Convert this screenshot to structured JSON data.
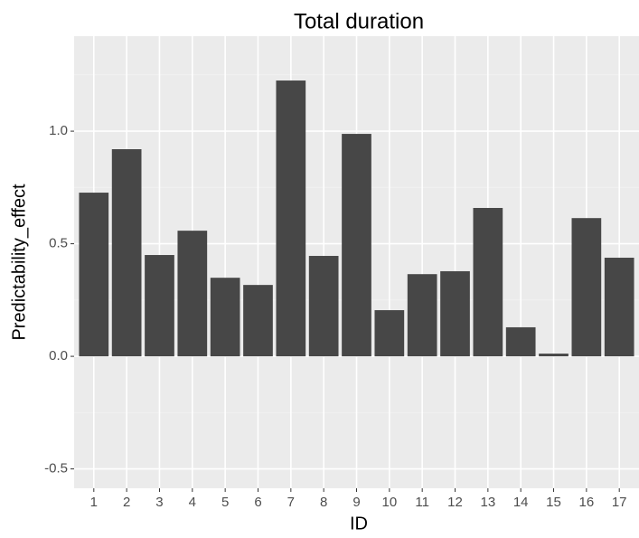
{
  "chart_data": {
    "type": "bar",
    "title": "Total duration",
    "x_label": "ID",
    "y_label": "Predictability_effect",
    "categories": [
      "1",
      "2",
      "3",
      "4",
      "5",
      "6",
      "7",
      "8",
      "9",
      "10",
      "11",
      "12",
      "13",
      "14",
      "15",
      "16",
      "17"
    ],
    "values": [
      0.727,
      0.92,
      0.45,
      0.558,
      0.349,
      0.317,
      1.225,
      0.446,
      0.988,
      0.205,
      0.365,
      0.378,
      0.659,
      0.129,
      0.012,
      0.614,
      0.438
    ],
    "color": "#474747",
    "ylim": [
      -0.586,
      1.422
    ],
    "yticks": [
      -0.5,
      {
        "value": 0,
        "label": "0.0"
      },
      0.5,
      {
        "value": 1,
        "label": "1.0"
      }
    ],
    "grid": true
  }
}
